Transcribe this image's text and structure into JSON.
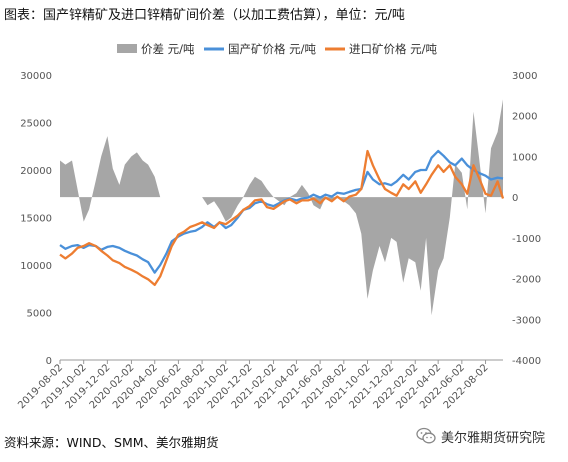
{
  "title": "图表：国产锌精矿及进口锌精矿间价差（以加工费估算），单位：元/吨",
  "source": "资料来源：WIND、SMM、美尔雅期货",
  "watermark": "美尔雅期货研究院",
  "colors": {
    "spread": "#a6a6a6",
    "domestic": "#4a90d9",
    "imported": "#ed7d31"
  },
  "chart_data": {
    "type": "line",
    "legend": [
      "价差 元/吨",
      "国产矿价格 元/吨",
      "进口矿价格 元/吨"
    ],
    "x_ticks": [
      "2019-08-02",
      "2019-10-02",
      "2019-12-02",
      "2020-02-02",
      "2020-04-02",
      "2020-06-02",
      "2020-08-02",
      "2020-10-02",
      "2020-12-02",
      "2021-02-02",
      "2021-04-02",
      "2021-06-02",
      "2021-08-02",
      "2021-10-02",
      "2021-12-02",
      "2022-02-02",
      "2022-04-02",
      "2022-06-02",
      "2022-08-02"
    ],
    "left_axis": {
      "min": 0,
      "max": 30000,
      "ticks": [
        0,
        5000,
        10000,
        15000,
        20000,
        25000,
        30000
      ]
    },
    "right_axis": {
      "min": -4000,
      "max": 3000,
      "ticks": [
        -4000,
        -3000,
        -2000,
        -1000,
        0,
        1000,
        2000,
        3000
      ]
    },
    "x": [
      "2019-08-02",
      "2019-08-16",
      "2019-09-02",
      "2019-09-16",
      "2019-10-02",
      "2019-10-16",
      "2019-11-02",
      "2019-11-16",
      "2019-12-02",
      "2019-12-16",
      "2020-01-02",
      "2020-01-16",
      "2020-02-02",
      "2020-02-16",
      "2020-03-02",
      "2020-03-16",
      "2020-04-02",
      "2020-04-16",
      "2020-05-02",
      "2020-05-16",
      "2020-06-02",
      "2020-06-16",
      "2020-07-02",
      "2020-07-16",
      "2020-08-02",
      "2020-08-16",
      "2020-09-02",
      "2020-09-16",
      "2020-10-02",
      "2020-10-16",
      "2020-11-02",
      "2020-11-16",
      "2020-12-02",
      "2020-12-16",
      "2021-01-02",
      "2021-01-16",
      "2021-02-02",
      "2021-02-16",
      "2021-03-02",
      "2021-03-16",
      "2021-04-02",
      "2021-04-16",
      "2021-05-02",
      "2021-05-16",
      "2021-06-02",
      "2021-06-16",
      "2021-07-02",
      "2021-07-16",
      "2021-08-02",
      "2021-08-16",
      "2021-09-02",
      "2021-09-16",
      "2021-10-02",
      "2021-10-16",
      "2021-11-02",
      "2021-11-16",
      "2021-12-02",
      "2021-12-16",
      "2022-01-02",
      "2022-01-16",
      "2022-02-02",
      "2022-02-16",
      "2022-03-02",
      "2022-03-16",
      "2022-04-02",
      "2022-04-16",
      "2022-05-02",
      "2022-05-16",
      "2022-06-02",
      "2022-06-16",
      "2022-07-02",
      "2022-07-16",
      "2022-08-02",
      "2022-08-16",
      "2022-09-02",
      "2022-09-16"
    ],
    "series": [
      {
        "name": "价差 元/吨",
        "axis": "right",
        "type": "area",
        "values": [
          900,
          800,
          900,
          200,
          -600,
          -300,
          400,
          1000,
          1500,
          700,
          300,
          800,
          1000,
          1100,
          900,
          800,
          500,
          0,
          0,
          0,
          0,
          0,
          0,
          0,
          0,
          -200,
          -100,
          -300,
          -600,
          -500,
          -200,
          0,
          300,
          500,
          400,
          200,
          0,
          -100,
          -200,
          0,
          100,
          300,
          100,
          -200,
          -300,
          0,
          -100,
          0,
          -100,
          -200,
          -400,
          -900,
          -2500,
          -1800,
          -1200,
          -1600,
          -1000,
          -1100,
          -2100,
          -1500,
          -1600,
          -2300,
          -1000,
          -2900,
          -1800,
          -1500,
          -500,
          800,
          600,
          -300,
          2100,
          1000,
          -400,
          1200,
          1600,
          2400
        ]
      },
      {
        "name": "国产矿价格 元/吨",
        "axis": "left",
        "values": [
          12100,
          11700,
          12000,
          12100,
          11800,
          12100,
          12000,
          11600,
          11900,
          12000,
          11800,
          11500,
          11200,
          11000,
          10600,
          10300,
          9200,
          10000,
          11200,
          12500,
          13000,
          13300,
          13500,
          13600,
          14000,
          14500,
          14000,
          14500,
          13900,
          14200,
          15000,
          15800,
          16000,
          16500,
          16700,
          16400,
          16200,
          16500,
          16800,
          17000,
          16800,
          17000,
          17100,
          17400,
          17100,
          17400,
          17200,
          17600,
          17500,
          17700,
          17900,
          18000,
          19800,
          19000,
          18500,
          18600,
          18400,
          18800,
          19500,
          19000,
          19800,
          20000,
          20000,
          21300,
          22000,
          21500,
          20800,
          20500,
          21200,
          20500,
          20000,
          19700,
          19400,
          19000,
          19200,
          19100
        ]
      },
      {
        "name": "进口矿价格 元/吨",
        "axis": "left",
        "values": [
          11100,
          10700,
          11200,
          11800,
          12000,
          12300,
          12000,
          11500,
          11000,
          10500,
          10200,
          9800,
          9500,
          9200,
          8800,
          8500,
          7900,
          8800,
          10500,
          12000,
          13200,
          13500,
          14000,
          14200,
          14500,
          14200,
          13900,
          14500,
          14300,
          14700,
          15200,
          15800,
          16200,
          16800,
          16900,
          16100,
          15900,
          16300,
          16700,
          16900,
          16500,
          16800,
          16800,
          17000,
          16500,
          17100,
          16700,
          17200,
          16700,
          17200,
          17400,
          18000,
          22000,
          20500,
          19000,
          18000,
          17600,
          17300,
          18500,
          18000,
          18800,
          17600,
          18500,
          19500,
          20500,
          19800,
          20500,
          19300,
          18500,
          17500,
          20500,
          19200,
          17500,
          17300,
          18800,
          17000
        ]
      }
    ]
  }
}
